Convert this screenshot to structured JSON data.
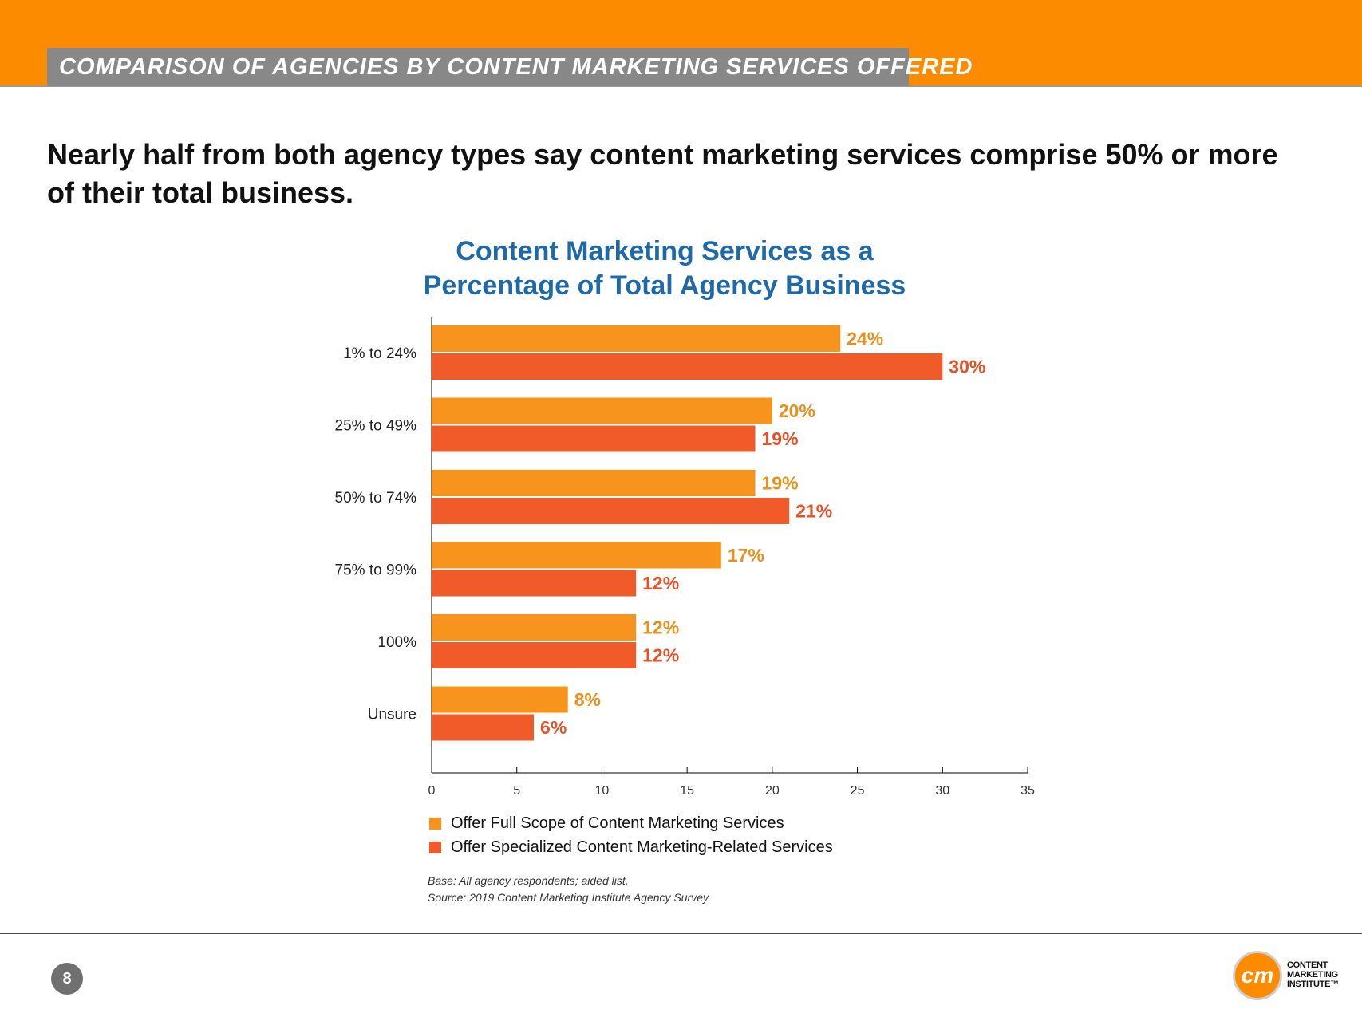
{
  "header": {
    "section_title": "COMPARISON OF AGENCIES BY CONTENT MARKETING SERVICES OFFERED",
    "headline": "Nearly half from both agency types say content marketing services comprise 50% or more of their total business."
  },
  "chart_data": {
    "type": "bar",
    "orientation": "horizontal",
    "title_lines": [
      "Content Marketing Services as a",
      "Percentage of Total Agency Business"
    ],
    "categories": [
      "1% to 24%",
      "25% to 49%",
      "50% to 74%",
      "75% to 99%",
      "100%",
      "Unsure"
    ],
    "series": [
      {
        "name": "Offer Full Scope of Content Marketing Services",
        "color": "#f7941d",
        "label_color": "#e8901e",
        "values": [
          24,
          20,
          19,
          17,
          12,
          8
        ],
        "labels": [
          "24%",
          "20%",
          "19%",
          "17%",
          "12%",
          "8%"
        ]
      },
      {
        "name": "Offer Specialized Content Marketing-Related Services",
        "color": "#f15a29",
        "label_color": "#e2532a",
        "values": [
          30,
          19,
          21,
          12,
          12,
          6
        ],
        "labels": [
          "30%",
          "19%",
          "21%",
          "12%",
          "12%",
          "6%"
        ]
      }
    ],
    "xlim": [
      0,
      35
    ],
    "xticks": [
      0,
      5,
      10,
      15,
      20,
      25,
      30,
      35
    ],
    "grid": false,
    "legend_position": "bottom-left"
  },
  "notes": {
    "base": "Base: All agency respondents; aided list.",
    "source": "Source: 2019 Content Marketing Institute Agency Survey"
  },
  "footer": {
    "page_number": "8",
    "logo_mark": "cm",
    "logo_lines": [
      "CONTENT",
      "MARKETING",
      "INSTITUTE™"
    ]
  }
}
